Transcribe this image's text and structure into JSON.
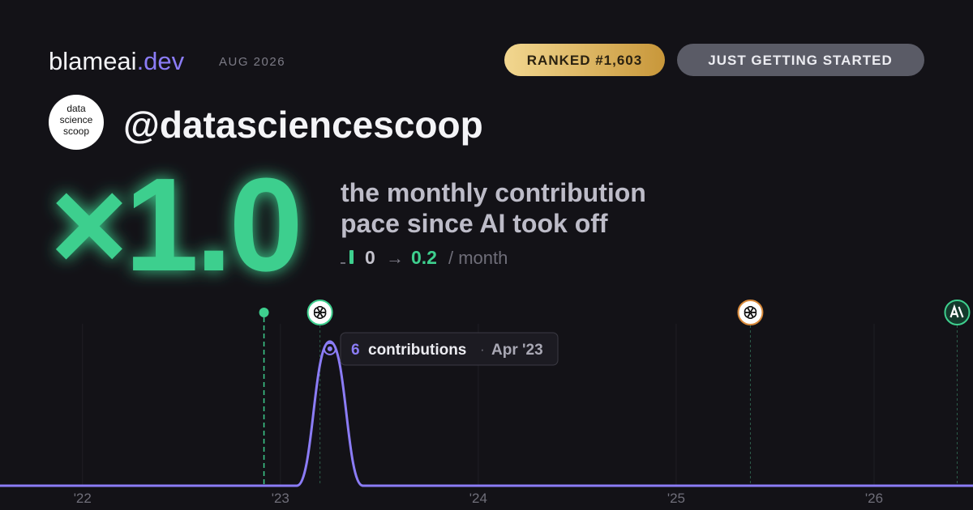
{
  "header": {
    "brand": "blameai",
    "brand_tld": ".dev",
    "date": "AUG 2026",
    "rank_badge": "RANKED #1,603",
    "status_badge": "JUST GETTING STARTED"
  },
  "profile": {
    "avatar": [
      "data",
      "science",
      "scoop"
    ],
    "handle": "@datasciencescoop"
  },
  "headline": {
    "multiplier": "×1.0",
    "description": [
      "the monthly contribution",
      "pace since AI took off"
    ],
    "before": 0,
    "arrow": "→",
    "after": 0.2,
    "unit": "/ month"
  },
  "chart_data": {
    "type": "line",
    "x": [
      2021.583,
      2023.083,
      2023.25,
      2023.417,
      2026.5
    ],
    "values": [
      0,
      0,
      6,
      0,
      0
    ],
    "color": "#8b7cf6",
    "xlim": [
      2021.583,
      2026.5
    ],
    "ylim": [
      0,
      6.5
    ],
    "xticks": [
      {
        "value": 2022,
        "label": "'22"
      },
      {
        "value": 2023,
        "label": "'23"
      },
      {
        "value": 2024,
        "label": "'24"
      },
      {
        "value": 2025,
        "label": "'25"
      },
      {
        "value": 2026,
        "label": "'26"
      }
    ],
    "grid": true,
    "events": [
      {
        "x": 2022.917
      },
      {
        "x": 2023.2
      },
      {
        "x": 2025.375
      },
      {
        "x": 2026.42
      }
    ],
    "tooltip": {
      "label": "contributions",
      "separator": "·",
      "date": "Apr '23"
    }
  }
}
